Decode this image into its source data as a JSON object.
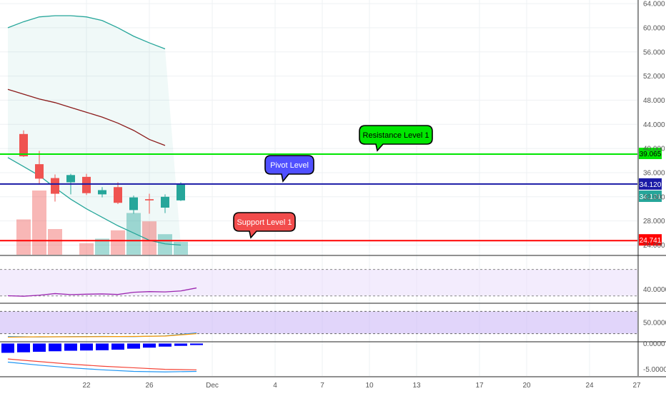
{
  "chart_data": {
    "type": "candlestick",
    "title": "",
    "colors": {
      "up": "#26a69a",
      "down": "#ef5350",
      "resistance": "#00e600",
      "pivot": "#1a1aa6",
      "support": "#ff0000",
      "bollinger_upper": "#26a69a",
      "moving_average": "#8b1a1a",
      "rsi_line": "#9c27b0",
      "macd_hist": "#0000ff",
      "macd_line": "#2196f3",
      "signal_line": "#f44336",
      "band_fill": "#e9ddfb"
    },
    "x_axis": {
      "tick_labels": [
        "22",
        "26",
        "Dec",
        "4",
        "7",
        "10",
        "13",
        "17",
        "20",
        "24",
        "27"
      ],
      "tick_days": [
        22,
        26,
        30,
        34,
        37,
        40,
        43,
        47,
        50,
        54,
        57
      ]
    },
    "price_axis": {
      "ticks": [
        "64.000",
        "60.000",
        "56.000",
        "52.000",
        "48.000",
        "44.000",
        "40.000",
        "36.000",
        "32.000",
        "28.000",
        "24.000"
      ],
      "ylim": [
        22.4,
        64.6
      ]
    },
    "candles": [
      {
        "day": 18,
        "open": 42.4,
        "high": 43.0,
        "low": 38.6,
        "close": 38.7
      },
      {
        "day": 19,
        "open": 37.4,
        "high": 39.6,
        "low": 34.0,
        "close": 35.0
      },
      {
        "day": 20,
        "open": 35.1,
        "high": 35.7,
        "low": 31.2,
        "close": 32.5
      },
      {
        "day": 21,
        "open": 34.4,
        "high": 35.8,
        "low": 32.4,
        "close": 35.6
      },
      {
        "day": 22,
        "open": 35.3,
        "high": 35.8,
        "low": 32.3,
        "close": 32.6
      },
      {
        "day": 23,
        "open": 32.4,
        "high": 33.6,
        "low": 31.9,
        "close": 33.1
      },
      {
        "day": 24,
        "open": 33.6,
        "high": 34.4,
        "low": 30.8,
        "close": 31.0
      },
      {
        "day": 25,
        "open": 29.8,
        "high": 32.2,
        "low": 29.2,
        "close": 31.9
      },
      {
        "day": 26,
        "open": 31.6,
        "high": 32.5,
        "low": 29.2,
        "close": 31.4
      },
      {
        "day": 27,
        "open": 30.2,
        "high": 32.4,
        "low": 29.3,
        "close": 32.0
      },
      {
        "day": 28,
        "open": 31.4,
        "high": 34.4,
        "low": 31.3,
        "close": 34.1
      }
    ],
    "volume_relative": [
      0.55,
      1.0,
      0.4,
      0.0,
      0.18,
      0.25,
      0.38,
      0.65,
      0.52,
      0.32,
      0.2
    ],
    "bollinger_upper": [
      [
        17,
        60.0
      ],
      [
        18,
        61.0
      ],
      [
        19,
        61.8
      ],
      [
        20,
        62.0
      ],
      [
        21,
        62.0
      ],
      [
        22,
        61.8
      ],
      [
        23,
        61.2
      ],
      [
        24,
        60.0
      ],
      [
        25,
        58.6
      ],
      [
        26,
        57.5
      ],
      [
        27,
        56.5
      ]
    ],
    "moving_average": [
      [
        17,
        49.8
      ],
      [
        18,
        49.0
      ],
      [
        19,
        48.2
      ],
      [
        20,
        47.6
      ],
      [
        21,
        46.8
      ],
      [
        22,
        46.0
      ],
      [
        23,
        45.2
      ],
      [
        24,
        44.2
      ],
      [
        25,
        43.0
      ],
      [
        26,
        41.5
      ],
      [
        27,
        40.5
      ]
    ],
    "lower_line": [
      [
        17,
        38.5
      ],
      [
        18,
        37.0
      ],
      [
        19,
        35.5
      ],
      [
        20,
        33.5
      ],
      [
        21,
        31.6
      ],
      [
        22,
        30.0
      ],
      [
        23,
        28.6
      ],
      [
        24,
        27.2
      ],
      [
        25,
        26.0
      ],
      [
        26,
        24.8
      ],
      [
        27,
        24.2
      ],
      [
        28,
        24.0
      ]
    ],
    "levels": [
      {
        "label": "Resistance Level 1",
        "value": "39.065",
        "price": 39.065
      },
      {
        "label": "Pivot Level",
        "value": "34.120",
        "price": 34.12
      },
      {
        "label": "Support Level 1",
        "value": "24.741",
        "price": 24.741
      }
    ],
    "last_price": {
      "value": "34.101",
      "price": 34.101
    },
    "rsi": {
      "tick": "40.0000",
      "tick_value": 40,
      "band": [
        30,
        70
      ],
      "ylim": [
        20,
        90
      ],
      "values": [
        [
          17,
          30.2
        ],
        [
          18,
          29.5
        ],
        [
          19,
          31.0
        ],
        [
          20,
          33.5
        ],
        [
          21,
          32.0
        ],
        [
          22,
          32.6
        ],
        [
          23,
          33.0
        ],
        [
          24,
          32.2
        ],
        [
          25,
          35.5
        ],
        [
          26,
          36.5
        ],
        [
          27,
          36.0
        ],
        [
          28,
          37.5
        ],
        [
          29,
          42.0
        ]
      ]
    },
    "stoch": {
      "tick": "50.0000",
      "tick_value": 50,
      "band": [
        20,
        80
      ],
      "ylim": [
        0,
        100
      ],
      "k": [
        [
          17,
          12.0
        ],
        [
          19,
          11.0
        ],
        [
          21,
          12.0
        ],
        [
          23,
          12.5
        ],
        [
          25,
          12.0
        ],
        [
          27,
          14.0
        ],
        [
          29,
          22.0
        ]
      ],
      "d": [
        [
          17,
          10.5
        ],
        [
          19,
          11.5
        ],
        [
          21,
          11.5
        ],
        [
          23,
          12.0
        ],
        [
          25,
          12.5
        ],
        [
          27,
          13.5
        ],
        [
          29,
          20.0
        ]
      ]
    },
    "macd": {
      "ticks": [
        "0.0000",
        "-5.0000"
      ],
      "tick_values": [
        0,
        -5
      ],
      "ylim": [
        -6.3,
        0.2
      ],
      "histogram": [
        [
          17,
          -1.8
        ],
        [
          18,
          -1.7
        ],
        [
          19,
          -1.6
        ],
        [
          20,
          -1.5
        ],
        [
          21,
          -1.4
        ],
        [
          22,
          -1.35
        ],
        [
          23,
          -1.3
        ],
        [
          24,
          -1.2
        ],
        [
          25,
          -1.0
        ],
        [
          26,
          -0.8
        ],
        [
          27,
          -0.6
        ],
        [
          28,
          -0.45
        ],
        [
          29,
          -0.3
        ]
      ],
      "macd_line": [
        [
          17,
          -3.6
        ],
        [
          19,
          -4.2
        ],
        [
          21,
          -4.7
        ],
        [
          23,
          -5.1
        ],
        [
          25,
          -5.4
        ],
        [
          27,
          -5.5
        ],
        [
          29,
          -5.4
        ]
      ],
      "signal_line": [
        [
          17,
          -3.0
        ],
        [
          19,
          -3.5
        ],
        [
          21,
          -4.0
        ],
        [
          23,
          -4.4
        ],
        [
          25,
          -4.7
        ],
        [
          27,
          -5.0
        ],
        [
          29,
          -5.1
        ]
      ]
    }
  }
}
